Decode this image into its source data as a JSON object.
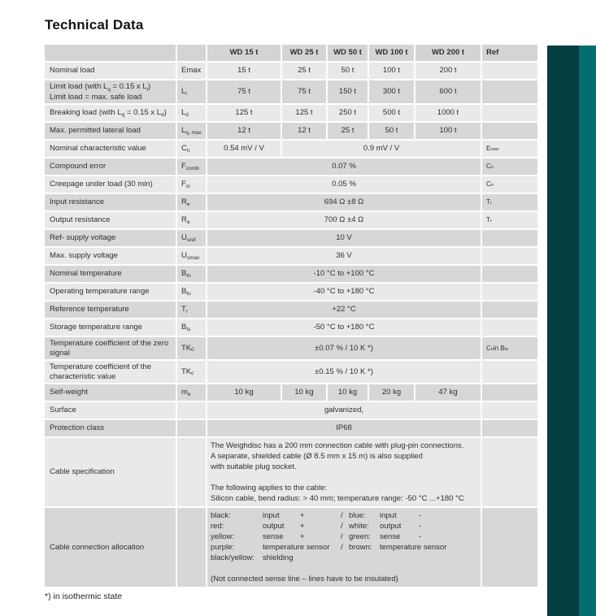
{
  "page": {
    "title": "Technical Data",
    "footnote": "*) in isothermic state"
  },
  "colors": {
    "sidebar_dark": "#043e41",
    "sidebar_light": "#006e72",
    "row_dark": "#d6d7d8",
    "row_light": "#e8e9e9",
    "header_row": "#d2d4d5"
  },
  "table": {
    "header_cols": [
      "",
      "",
      "WD 15 t",
      "WD 25 t",
      "WD 50 t",
      "WD 100 t",
      "WD 200 t",
      "Ref"
    ],
    "rows": [
      {
        "label": [
          [
            {
              "t": "Nominal load"
            }
          ]
        ],
        "sym": [
          {
            "t": "Emax"
          }
        ],
        "cells": {
          "type": "five",
          "vals": [
            "15 t",
            "25 t",
            "50 t",
            "100 t",
            "200 t"
          ]
        },
        "ref": []
      },
      {
        "label": [
          [
            {
              "t": "Limit load (with L"
            },
            {
              "s": "q"
            },
            {
              "t": " = 0.15 x L"
            },
            {
              "s": "l"
            },
            {
              "t": ")"
            }
          ],
          [
            {
              "t": "Limit load = max. safe load"
            }
          ]
        ],
        "sym": [
          {
            "t": "L"
          },
          {
            "s": "l"
          }
        ],
        "cells": {
          "type": "five",
          "vals": [
            "75 t",
            "75 t",
            "150 t",
            "300 t",
            "600 t"
          ]
        },
        "ref": []
      },
      {
        "label": [
          [
            {
              "t": "Breaking load (with L"
            },
            {
              "s": "q"
            },
            {
              "t": " = 0.15 x L"
            },
            {
              "s": "d"
            },
            {
              "t": ")"
            }
          ]
        ],
        "sym": [
          {
            "t": "L"
          },
          {
            "s": "d"
          }
        ],
        "cells": {
          "type": "five",
          "vals": [
            "125 t",
            "125 t",
            "250 t",
            "500 t",
            "1000 t"
          ]
        },
        "ref": []
      },
      {
        "label": [
          [
            {
              "t": "Max. permitted lateral load"
            }
          ]
        ],
        "sym": [
          {
            "t": "L"
          },
          {
            "s": "q, max"
          }
        ],
        "cells": {
          "type": "five",
          "vals": [
            "12 t",
            "12 t",
            "25 t",
            "50 t",
            "100 t"
          ]
        },
        "ref": []
      },
      {
        "label": [
          [
            {
              "t": "Nominal characteristic value"
            }
          ]
        ],
        "sym": [
          {
            "t": "C"
          },
          {
            "s": "n"
          }
        ],
        "cells": {
          "type": "split",
          "first": "0.54 mV / V",
          "rest": "0.9 mV / V"
        },
        "ref": [
          {
            "t": "E"
          },
          {
            "s": "max"
          }
        ]
      },
      {
        "label": [
          [
            {
              "t": "Compound error"
            }
          ]
        ],
        "sym": [
          {
            "t": "F"
          },
          {
            "s": "comb"
          }
        ],
        "cells": {
          "type": "span",
          "val": "0.07 %"
        },
        "ref": [
          {
            "t": "C"
          },
          {
            "s": "n"
          }
        ]
      },
      {
        "label": [
          [
            {
              "t": "Creepage under load (30 min)"
            }
          ]
        ],
        "sym": [
          {
            "t": "F"
          },
          {
            "s": "cr"
          }
        ],
        "cells": {
          "type": "span",
          "val": "0.05 %"
        },
        "ref": [
          {
            "t": "C"
          },
          {
            "s": "n"
          }
        ]
      },
      {
        "label": [
          [
            {
              "t": "Input resistance"
            }
          ]
        ],
        "sym": [
          {
            "t": "R"
          },
          {
            "s": "e"
          }
        ],
        "cells": {
          "type": "span",
          "val": "694 Ω ±8 Ω"
        },
        "ref": [
          {
            "t": "T"
          },
          {
            "s": "r"
          }
        ]
      },
      {
        "label": [
          [
            {
              "t": "Output resistance"
            }
          ]
        ],
        "sym": [
          {
            "t": "R"
          },
          {
            "s": "a"
          }
        ],
        "cells": {
          "type": "span",
          "val": "700 Ω ±4 Ω"
        },
        "ref": [
          {
            "t": "T"
          },
          {
            "s": "r"
          }
        ]
      },
      {
        "label": [
          [
            {
              "t": "Ref- supply voltage"
            }
          ]
        ],
        "sym": [
          {
            "t": "U"
          },
          {
            "s": "sref"
          }
        ],
        "cells": {
          "type": "span",
          "val": "10 V"
        },
        "ref": []
      },
      {
        "label": [
          [
            {
              "t": "Max. supply voltage"
            }
          ]
        ],
        "sym": [
          {
            "t": "U"
          },
          {
            "s": "smax"
          }
        ],
        "cells": {
          "type": "span",
          "val": "36 V"
        },
        "ref": []
      },
      {
        "label": [
          [
            {
              "t": "Nominal temperature"
            }
          ]
        ],
        "sym": [
          {
            "t": "B"
          },
          {
            "s": "tn"
          }
        ],
        "cells": {
          "type": "span",
          "val": "-10 °C to +100 °C"
        },
        "ref": []
      },
      {
        "label": [
          [
            {
              "t": "Operating temperature range"
            }
          ]
        ],
        "sym": [
          {
            "t": "B"
          },
          {
            "s": "tu"
          }
        ],
        "cells": {
          "type": "span",
          "val": "-40 °C to +180 °C"
        },
        "ref": []
      },
      {
        "label": [
          [
            {
              "t": "Reference temperature"
            }
          ]
        ],
        "sym": [
          {
            "t": "T"
          },
          {
            "s": "r"
          }
        ],
        "cells": {
          "type": "span",
          "val": "+22 °C"
        },
        "ref": []
      },
      {
        "label": [
          [
            {
              "t": "Storage temperature range"
            }
          ]
        ],
        "sym": [
          {
            "t": "B"
          },
          {
            "s": "ts"
          }
        ],
        "cells": {
          "type": "span",
          "val": "-50 °C to +180 °C"
        },
        "ref": []
      },
      {
        "label": [
          [
            {
              "t": "Temperature coefficient of the zero"
            }
          ],
          [
            {
              "t": "signal"
            }
          ]
        ],
        "sym": [
          {
            "t": "TK"
          },
          {
            "s": "0"
          }
        ],
        "cells": {
          "type": "span",
          "val": "±0.07 % / 10 K *)"
        },
        "ref": [
          {
            "t": "C"
          },
          {
            "s": "n"
          },
          {
            "t": " in B"
          },
          {
            "s": "tu"
          }
        ]
      },
      {
        "label": [
          [
            {
              "t": "Temperature coefficient of the"
            }
          ],
          [
            {
              "t": "characteristic value"
            }
          ]
        ],
        "sym": [
          {
            "t": "TK"
          },
          {
            "s": "c"
          }
        ],
        "cells": {
          "type": "span",
          "val": "±0.15 % / 10 K *)"
        },
        "ref": []
      },
      {
        "label": [
          [
            {
              "t": "Self-weight"
            }
          ]
        ],
        "sym": [
          {
            "t": "m"
          },
          {
            "s": "e"
          }
        ],
        "cells": {
          "type": "five",
          "vals": [
            "10 kg",
            "10 kg",
            "10 kg",
            "20 kg",
            "47 kg"
          ]
        },
        "ref": []
      },
      {
        "label": [
          [
            {
              "t": "Surface"
            }
          ]
        ],
        "sym": [],
        "cells": {
          "type": "span",
          "val": "galvanized,"
        },
        "ref": []
      },
      {
        "label": [
          [
            {
              "t": "Protection class"
            }
          ]
        ],
        "sym": [],
        "cells": {
          "type": "span",
          "val": "IP68"
        },
        "ref": []
      },
      {
        "label": [
          [
            {
              "t": "Cable specification"
            }
          ]
        ],
        "sym": [],
        "cells": {
          "type": "block",
          "block": "spec"
        },
        "ref": []
      },
      {
        "label": [
          [
            {
              "t": "Cable connection allocation"
            }
          ]
        ],
        "sym": [],
        "cells": {
          "type": "block",
          "block": "alloc"
        },
        "ref": []
      }
    ],
    "cable_spec_lines": [
      "The Weighdisc has a 200 mm connection cable with plug-pin connections.",
      "A separate, shielded cable (Ø 8.5 mm x 15 m) is also supplied",
      "with suitable plug socket.",
      "",
      "The following applies to the cable:",
      "Silicon cable, bend radius: > 40 mm; temperature range: -50 °C ...+180 °C"
    ],
    "cable_alloc": {
      "rows": [
        [
          "black:",
          "input",
          "+",
          "/",
          "blue:",
          "input",
          "-"
        ],
        [
          "red:",
          "output",
          "+",
          "/",
          "white:",
          "output",
          "-"
        ],
        [
          "yellow:",
          "sense",
          "+",
          "/",
          "green:",
          "sense",
          "-"
        ],
        [
          "purple:",
          "temperature sensor",
          "",
          "/",
          "brown:",
          "temperature sensor",
          ""
        ],
        [
          "black/yellow:",
          "shielding",
          "",
          "",
          "",
          "",
          ""
        ]
      ],
      "note": "(Not connected sense line – lines have to be insulated)"
    }
  }
}
